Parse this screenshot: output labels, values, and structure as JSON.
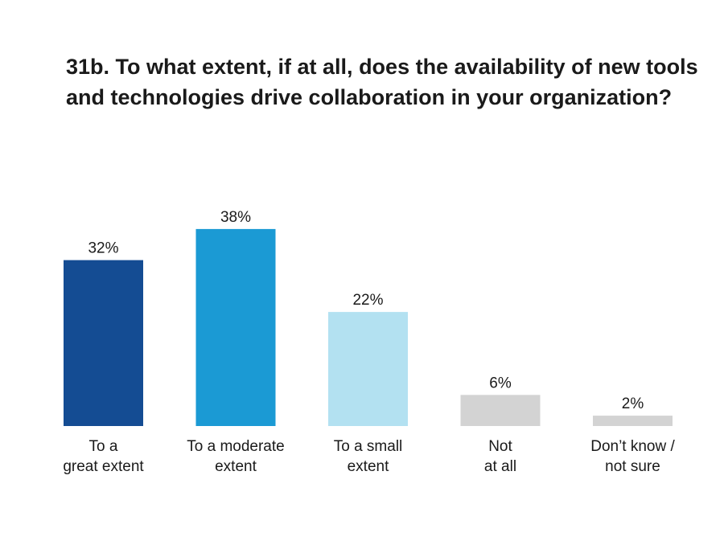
{
  "chart_data": {
    "type": "bar",
    "title": "31b. To what extent, if at all, does the availability of new tools and technologies drive collaboration in your organization?",
    "categories": [
      [
        "To a",
        "great extent"
      ],
      [
        "To a moderate",
        "extent"
      ],
      [
        "To a small",
        "extent"
      ],
      [
        "Not",
        "at all"
      ],
      [
        "Don’t know /",
        "not sure"
      ]
    ],
    "values": [
      32,
      38,
      22,
      6,
      2
    ],
    "value_labels": [
      "32%",
      "38%",
      "22%",
      "6%",
      "2%"
    ],
    "colors": [
      "#144c93",
      "#1b9ad4",
      "#b3e1f1",
      "#d3d3d3",
      "#d3d3d3"
    ],
    "unit": "%",
    "grid": false,
    "legend": "none"
  }
}
